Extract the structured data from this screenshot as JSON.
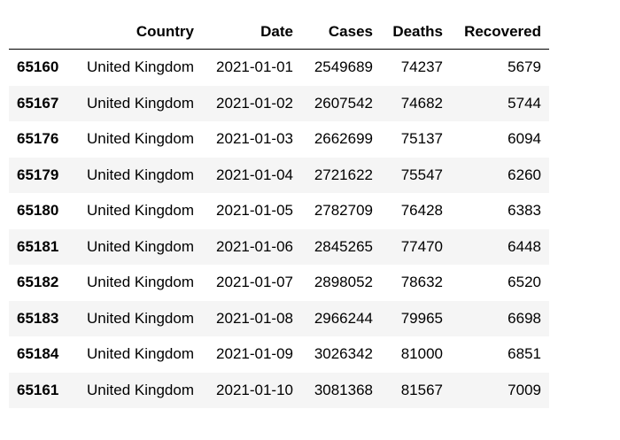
{
  "table": {
    "columns": [
      "Country",
      "Date",
      "Cases",
      "Deaths",
      "Recovered"
    ],
    "rows": [
      {
        "index": 65160,
        "cells": [
          "United Kingdom",
          "2021-01-01",
          2549689,
          74237,
          5679
        ]
      },
      {
        "index": 65167,
        "cells": [
          "United Kingdom",
          "2021-01-02",
          2607542,
          74682,
          5744
        ]
      },
      {
        "index": 65176,
        "cells": [
          "United Kingdom",
          "2021-01-03",
          2662699,
          75137,
          6094
        ]
      },
      {
        "index": 65179,
        "cells": [
          "United Kingdom",
          "2021-01-04",
          2721622,
          75547,
          6260
        ]
      },
      {
        "index": 65180,
        "cells": [
          "United Kingdom",
          "2021-01-05",
          2782709,
          76428,
          6383
        ]
      },
      {
        "index": 65181,
        "cells": [
          "United Kingdom",
          "2021-01-06",
          2845265,
          77470,
          6448
        ]
      },
      {
        "index": 65182,
        "cells": [
          "United Kingdom",
          "2021-01-07",
          2898052,
          78632,
          6520
        ]
      },
      {
        "index": 65183,
        "cells": [
          "United Kingdom",
          "2021-01-08",
          2966244,
          79965,
          6698
        ]
      },
      {
        "index": 65184,
        "cells": [
          "United Kingdom",
          "2021-01-09",
          3026342,
          81000,
          6851
        ]
      },
      {
        "index": 65161,
        "cells": [
          "United Kingdom",
          "2021-01-10",
          3081368,
          81567,
          7009
        ]
      }
    ]
  }
}
